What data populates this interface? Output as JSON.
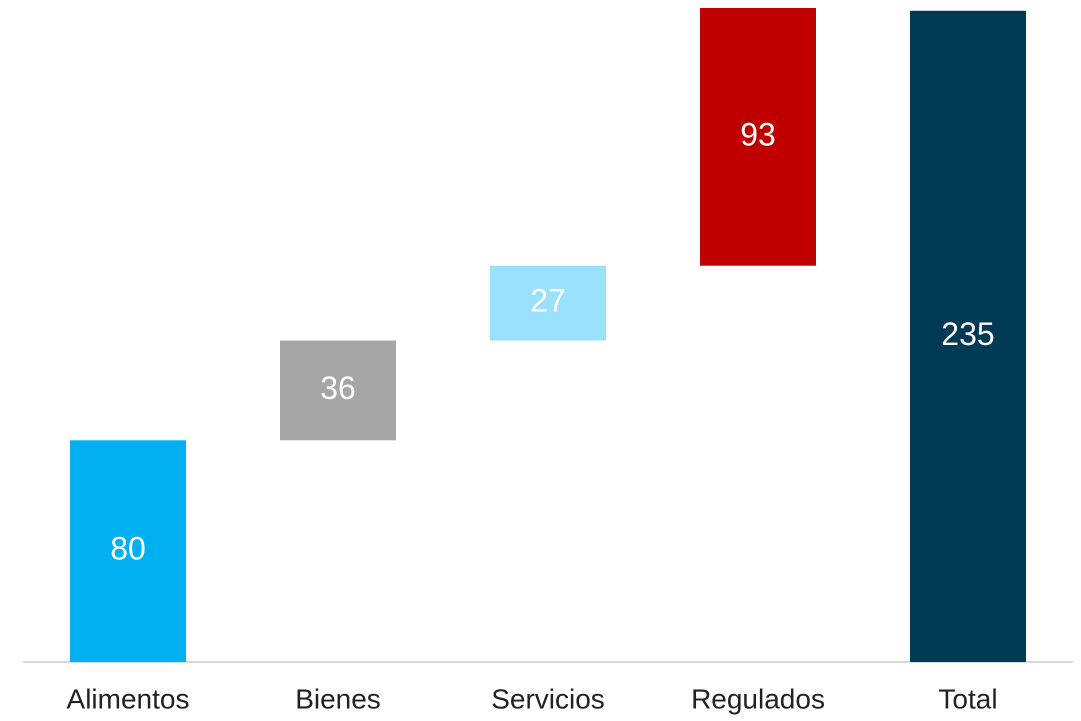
{
  "chart_data": {
    "type": "waterfall",
    "categories": [
      "Alimentos",
      "Bienes",
      "Servicios",
      "Regulados",
      "Total"
    ],
    "values": [
      80,
      36,
      27,
      93,
      235
    ],
    "colors": [
      "#00b0f0",
      "#a6a6a6",
      "#99e1fc",
      "#c00000",
      "#003a54"
    ]
  }
}
